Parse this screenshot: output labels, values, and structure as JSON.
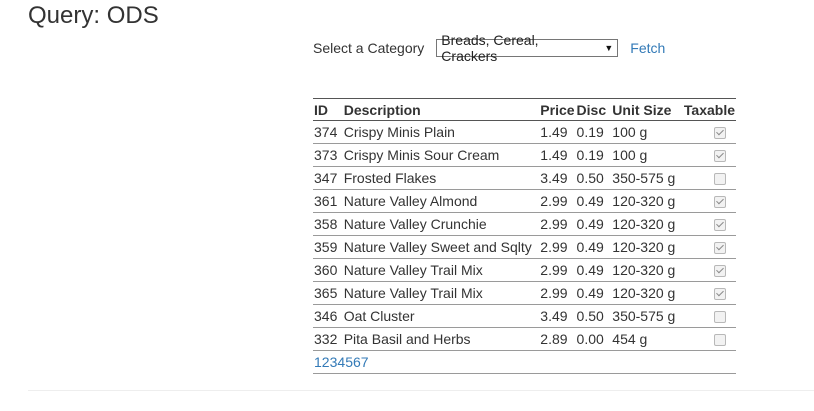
{
  "page": {
    "title": "Query: ODS"
  },
  "controls": {
    "category_label": "Select a Category",
    "category_selected": "Breads, Cereal, Crackers",
    "fetch_label": "Fetch"
  },
  "table": {
    "headers": [
      "ID",
      "Description",
      "Price",
      "Disc",
      "Unit Size",
      "Taxable"
    ],
    "rows": [
      {
        "id": "374",
        "description": "Crispy Minis Plain",
        "price": "1.49",
        "disc": "0.19",
        "unit": "100 g",
        "taxable": true
      },
      {
        "id": "373",
        "description": "Crispy Minis Sour Cream",
        "price": "1.49",
        "disc": "0.19",
        "unit": "100 g",
        "taxable": true
      },
      {
        "id": "347",
        "description": "Frosted Flakes",
        "price": "3.49",
        "disc": "0.50",
        "unit": "350-575 g",
        "taxable": false
      },
      {
        "id": "361",
        "description": "Nature Valley Almond",
        "price": "2.99",
        "disc": "0.49",
        "unit": "120-320 g",
        "taxable": true
      },
      {
        "id": "358",
        "description": "Nature Valley Crunchie",
        "price": "2.99",
        "disc": "0.49",
        "unit": "120-320 g",
        "taxable": true
      },
      {
        "id": "359",
        "description": "Nature Valley Sweet and Sqlty",
        "price": "2.99",
        "disc": "0.49",
        "unit": "120-320 g",
        "taxable": true
      },
      {
        "id": "360",
        "description": "Nature Valley Trail Mix",
        "price": "2.99",
        "disc": "0.49",
        "unit": "120-320 g",
        "taxable": true
      },
      {
        "id": "365",
        "description": "Nature Valley Trail Mix",
        "price": "2.99",
        "disc": "0.49",
        "unit": "120-320 g",
        "taxable": true
      },
      {
        "id": "346",
        "description": "Oat Cluster",
        "price": "3.49",
        "disc": "0.50",
        "unit": "350-575 g",
        "taxable": false
      },
      {
        "id": "332",
        "description": "Pita Basil and Herbs",
        "price": "2.89",
        "disc": "0.00",
        "unit": "454 g",
        "taxable": false
      }
    ],
    "pages": [
      "1",
      "2",
      "3",
      "4",
      "5",
      "6",
      "7"
    ],
    "current_page": "1"
  }
}
